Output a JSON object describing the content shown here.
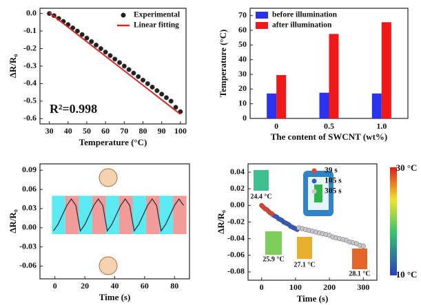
{
  "chart_data": [
    {
      "type": "scatter",
      "xlabel": "Temperature (°C)",
      "ylabel": "ΔR/R₀",
      "xlim": [
        25,
        103
      ],
      "ylim": [
        -0.63,
        0.03
      ],
      "xticks": [
        30,
        40,
        50,
        60,
        70,
        80,
        90,
        100
      ],
      "yticks": [
        {
          "value": 0,
          "label": "0.0"
        },
        -0.1,
        -0.2,
        -0.3,
        -0.4,
        -0.5,
        -0.6
      ],
      "legend": "upper right",
      "grid": false,
      "annotations": [
        "R²=0.998"
      ],
      "series": [
        {
          "name": "Experimental",
          "color": "#222222",
          "mode": "markers",
          "x": [
            30,
            32.5,
            35,
            37.5,
            40,
            42.5,
            45,
            47.5,
            50,
            52.5,
            55,
            57.5,
            60,
            62.5,
            65,
            67.5,
            70,
            72.5,
            75,
            77.5,
            80,
            82.5,
            85,
            87.5,
            90,
            92.5,
            95,
            97.5,
            100
          ],
          "values": [
            0,
            -0.012,
            -0.028,
            -0.045,
            -0.063,
            -0.082,
            -0.1,
            -0.12,
            -0.14,
            -0.16,
            -0.18,
            -0.2,
            -0.22,
            -0.24,
            -0.26,
            -0.28,
            -0.3,
            -0.32,
            -0.34,
            -0.36,
            -0.38,
            -0.4,
            -0.42,
            -0.44,
            -0.46,
            -0.48,
            -0.5,
            -0.535,
            -0.56
          ]
        },
        {
          "name": "Linear fitting",
          "color": "#e02424",
          "mode": "line",
          "x": [
            30,
            100
          ],
          "values": [
            0.005,
            -0.575
          ]
        }
      ]
    },
    {
      "type": "bar",
      "xlabel": "The content of SWCNT (wt%)",
      "ylabel": "Temperature (°C)",
      "categories": [
        "0",
        "0.5",
        "1.0"
      ],
      "ylim": [
        0,
        75
      ],
      "yticks": [
        0,
        10,
        20,
        30,
        40,
        50,
        60,
        70
      ],
      "legend": "upper left",
      "grid": false,
      "series": [
        {
          "name": "before illumination",
          "color": "#2832f0",
          "values": [
            17,
            17.5,
            17
          ]
        },
        {
          "name": "after illumination",
          "color": "#f01818",
          "values": [
            29.5,
            57.5,
            65.5
          ]
        }
      ]
    },
    {
      "type": "line",
      "xlabel": "Time (s)",
      "ylabel": "ΔR/R₀",
      "xlim": [
        -10,
        90
      ],
      "ylim": [
        -0.08,
        0.1
      ],
      "xticks": [
        0,
        20,
        40,
        60,
        80
      ],
      "yticks": [
        0.09,
        0.06,
        0.03,
        {
          "value": 0,
          "label": "0.00"
        },
        -0.03,
        -0.06
      ],
      "grid": false,
      "color": "#333333",
      "shade_ylim": [
        -0.01,
        0.05
      ],
      "shaded_regions": [
        {
          "start": -2,
          "end": 7,
          "color": "#3ee6f0"
        },
        {
          "start": 7,
          "end": 16,
          "color": "#f08a8a"
        },
        {
          "start": 16,
          "end": 25,
          "color": "#3ee6f0"
        },
        {
          "start": 25,
          "end": 34,
          "color": "#f08a8a"
        },
        {
          "start": 34,
          "end": 43,
          "color": "#3ee6f0"
        },
        {
          "start": 43,
          "end": 52,
          "color": "#f08a8a"
        },
        {
          "start": 52,
          "end": 61,
          "color": "#3ee6f0"
        },
        {
          "start": 61,
          "end": 70,
          "color": "#f08a8a"
        },
        {
          "start": 70,
          "end": 79,
          "color": "#3ee6f0"
        },
        {
          "start": 79,
          "end": 88,
          "color": "#f08a8a"
        }
      ],
      "x": [
        -1,
        2,
        5,
        8,
        11,
        14,
        17,
        20,
        23,
        26,
        29,
        32,
        35,
        38,
        41,
        44,
        47,
        50,
        53,
        56,
        59,
        62,
        65,
        68,
        71,
        74,
        77,
        80,
        83,
        86
      ],
      "values": [
        -0.005,
        0.005,
        0.02,
        0.035,
        0.045,
        0.035,
        -0.005,
        0.005,
        0.02,
        0.035,
        0.045,
        0.035,
        -0.005,
        0.005,
        0.02,
        0.035,
        0.045,
        0.035,
        -0.005,
        0.005,
        0.02,
        0.035,
        0.045,
        0.035,
        -0.005,
        0.005,
        0.02,
        0.035,
        0.045,
        0.035
      ]
    },
    {
      "type": "scatter",
      "xlabel": "Time (s)",
      "ylabel": "ΔR/R₀",
      "xlim": [
        -40,
        340
      ],
      "ylim": [
        -0.09,
        0.05
      ],
      "xticks": [
        0,
        100,
        200,
        300
      ],
      "yticks": [
        0.04,
        0.02,
        {
          "value": 0,
          "label": "0.00"
        },
        -0.02,
        -0.04,
        -0.06,
        -0.08
      ],
      "legend": "upper right",
      "grid": false,
      "annotations": [
        "24.4 °C",
        "25.9 °C",
        "27.1 °C",
        "28.1 °C",
        "30 °C",
        "10 °C"
      ],
      "series": [
        {
          "name": "39 s",
          "color": "#e8432a",
          "mode": "markers",
          "x": [
            0,
            5,
            10,
            15,
            20,
            25,
            30,
            35
          ],
          "values": [
            0,
            -0.002,
            -0.004,
            -0.005,
            -0.007,
            -0.009,
            -0.01,
            -0.012
          ]
        },
        {
          "name": "105 s",
          "color": "#2f5bc9",
          "mode": "markers",
          "x": [
            40,
            45,
            50,
            55,
            60,
            65,
            70,
            75,
            80,
            85,
            90,
            95,
            100,
            105
          ],
          "values": [
            -0.013,
            -0.014,
            -0.016,
            -0.017,
            -0.018,
            -0.02,
            -0.021,
            -0.022,
            -0.023,
            -0.025,
            -0.026,
            -0.027,
            -0.028,
            -0.029
          ]
        },
        {
          "name": "305 s",
          "color": "#c8c8cc",
          "mode": "markers",
          "x": [
            110,
            120,
            130,
            140,
            150,
            160,
            170,
            180,
            190,
            200,
            210,
            220,
            230,
            240,
            250,
            260,
            270,
            280,
            290,
            300
          ],
          "values": [
            -0.027,
            -0.028,
            -0.029,
            -0.03,
            -0.031,
            -0.032,
            -0.033,
            -0.034,
            -0.035,
            -0.036,
            -0.038,
            -0.039,
            -0.04,
            -0.041,
            -0.042,
            -0.044,
            -0.045,
            -0.046,
            -0.048,
            -0.049
          ]
        }
      ]
    }
  ]
}
